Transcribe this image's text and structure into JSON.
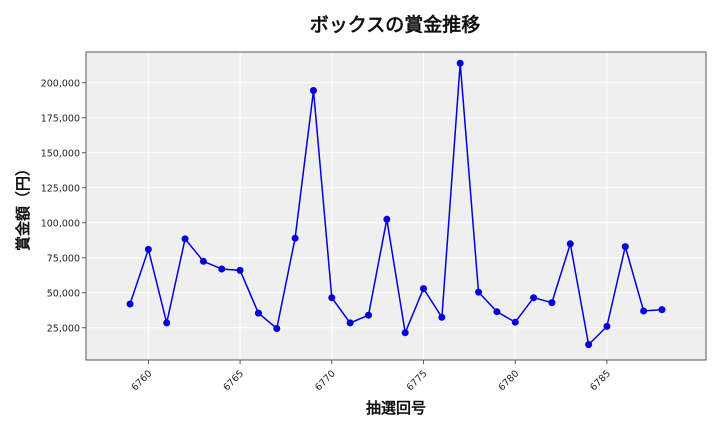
{
  "chart_data": {
    "type": "line",
    "title": "ボックスの賞金推移",
    "xlabel": "抽選回号",
    "ylabel": "賞金額（円）",
    "x": [
      6759,
      6760,
      6761,
      6762,
      6763,
      6764,
      6765,
      6766,
      6767,
      6768,
      6769,
      6770,
      6771,
      6772,
      6773,
      6774,
      6775,
      6776,
      6777,
      6778,
      6779,
      6780,
      6781,
      6782,
      6783,
      6784,
      6785,
      6786,
      6787,
      6788
    ],
    "series": [
      {
        "values": [
          42000,
          81000,
          28500,
          88500,
          72500,
          67000,
          66000,
          35500,
          24500,
          89000,
          194500,
          46500,
          28500,
          34000,
          102500,
          21500,
          53000,
          32500,
          214000,
          50500,
          36500,
          29000,
          46500,
          43000,
          85000,
          13000,
          26000,
          83000,
          37000,
          38000
        ],
        "color": "#0000dd"
      }
    ],
    "xlim": [
      6756.6,
      6790.4
    ],
    "ylim": [
      2000,
      222000
    ],
    "xticks": [
      6760,
      6765,
      6770,
      6775,
      6780,
      6785
    ],
    "yticks": [
      25000,
      50000,
      75000,
      100000,
      125000,
      150000,
      175000,
      200000
    ],
    "ytick_labels": [
      "25,000",
      "50,000",
      "75,000",
      "100,000",
      "125,000",
      "150,000",
      "175,000",
      "200,000"
    ],
    "grid": true,
    "background": "#efefef"
  }
}
